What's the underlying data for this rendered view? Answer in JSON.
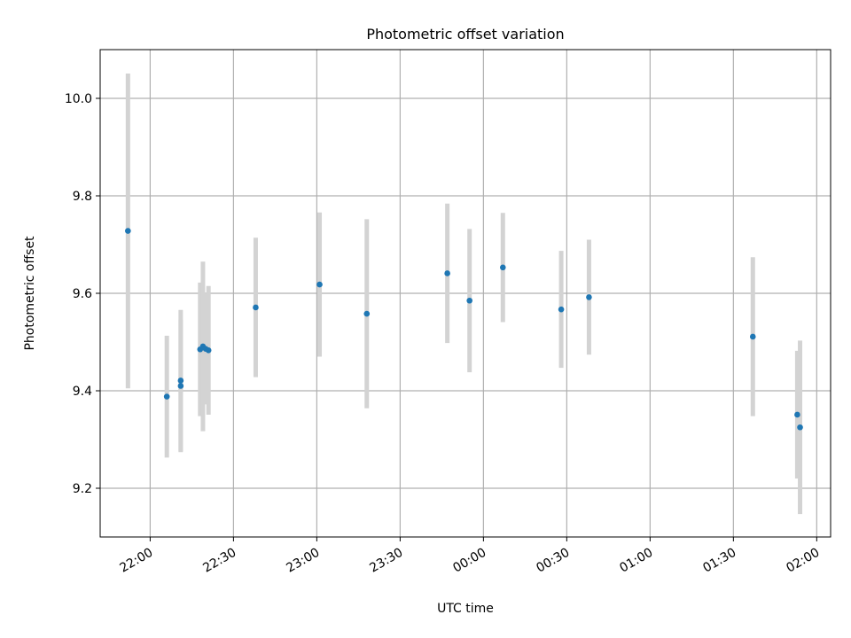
{
  "chart_data": {
    "type": "scatter",
    "title": "Photometric offset variation",
    "xlabel": "UTC time",
    "ylabel": "Photometric offset",
    "x_axis": {
      "kind": "time",
      "start": "21:42",
      "end": "02:05",
      "ticks": [
        "22:00",
        "22:30",
        "23:00",
        "23:30",
        "00:00",
        "00:30",
        "01:00",
        "01:30",
        "02:00"
      ],
      "tick_label_rotation_deg": 30
    },
    "y_axis": {
      "ylim": [
        9.1,
        10.1
      ],
      "ticks": [
        "9.2",
        "9.4",
        "9.6",
        "9.8",
        "10.0"
      ]
    },
    "grid": true,
    "colors": {
      "point": "#1f77b4",
      "error_bar": "#d3d3d3",
      "grid": "#b0b0b0"
    },
    "points": [
      {
        "time": "21:52",
        "y": 9.728,
        "err": 0.323
      },
      {
        "time": "22:06",
        "y": 9.388,
        "err": 0.125
      },
      {
        "time": "22:11",
        "y": 9.41,
        "err": 0.136
      },
      {
        "time": "22:11",
        "y": 9.421,
        "err": 0.145
      },
      {
        "time": "22:18",
        "y": 9.485,
        "err": 0.137
      },
      {
        "time": "22:19",
        "y": 9.491,
        "err": 0.174
      },
      {
        "time": "22:20",
        "y": 9.486,
        "err": 0.114
      },
      {
        "time": "22:21",
        "y": 9.483,
        "err": 0.132
      },
      {
        "time": "22:38",
        "y": 9.571,
        "err": 0.143
      },
      {
        "time": "23:01",
        "y": 9.618,
        "err": 0.148
      },
      {
        "time": "23:18",
        "y": 9.558,
        "err": 0.194
      },
      {
        "time": "23:47",
        "y": 9.641,
        "err": 0.143
      },
      {
        "time": "23:55",
        "y": 9.585,
        "err": 0.147
      },
      {
        "time": "00:07",
        "y": 9.653,
        "err": 0.112
      },
      {
        "time": "00:28",
        "y": 9.567,
        "err": 0.12
      },
      {
        "time": "00:38",
        "y": 9.592,
        "err": 0.118
      },
      {
        "time": "01:37",
        "y": 9.511,
        "err": 0.163
      },
      {
        "time": "01:53",
        "y": 9.351,
        "err": 0.131
      },
      {
        "time": "01:54",
        "y": 9.325,
        "err": 0.178
      }
    ]
  }
}
